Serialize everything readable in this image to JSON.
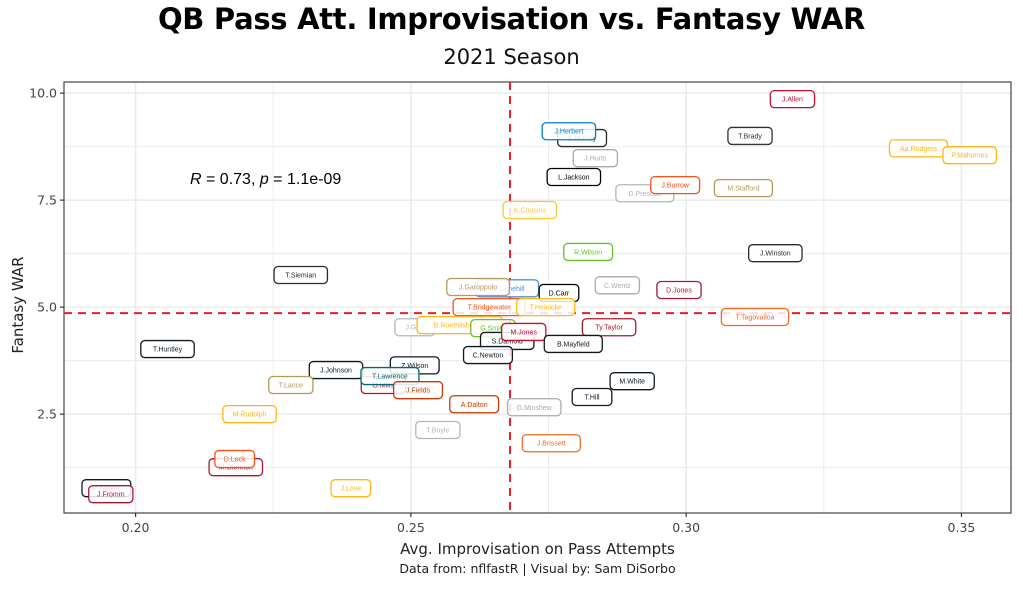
{
  "chart_data": {
    "type": "scatter",
    "title": "QB Pass Att. Improvisation vs. Fantasy WAR",
    "subtitle": "2021 Season",
    "xlabel": "Avg. Improvisation on Pass Attempts",
    "ylabel": "Fantasy WAR",
    "caption": "Data from: nflfastR | Visual by: Sam DiSorbo",
    "xlim": [
      0.187,
      0.359
    ],
    "ylim": [
      0.19,
      10.26
    ],
    "xticks": [
      0.2,
      0.25,
      0.3,
      0.35
    ],
    "xtick_labels": [
      "0.20",
      "0.25",
      "0.30",
      "0.35"
    ],
    "yticks": [
      2.5,
      5.0,
      7.5,
      10.0
    ],
    "ytick_labels": [
      "2.5",
      "5.0",
      "7.5",
      "10.0"
    ],
    "grid": true,
    "annotation": {
      "r_label": "R",
      "r_value": "0.73",
      "p_label": "p",
      "p_value": "1.1e-09"
    },
    "reference_lines": {
      "x_mean": 0.268,
      "y_mean": 4.86,
      "color": "#ee1c25"
    },
    "points": [
      {
        "label": "J.Allen",
        "x": 0.3193,
        "y": 9.86,
        "color": "#c60c30"
      },
      {
        "label": "T.Brady",
        "x": 0.3116,
        "y": 9.0,
        "color": "#34302b"
      },
      {
        "label": "Aa.Rodgers",
        "x": 0.3422,
        "y": 8.71,
        "color": "#ffb612"
      },
      {
        "label": "P.Mahomes",
        "x": 0.3515,
        "y": 8.55,
        "color": "#ffb612"
      },
      {
        "label": "K.Murray",
        "x": 0.2811,
        "y": 8.95,
        "color": "#2a2a2a"
      },
      {
        "label": "J.Herbert",
        "x": 0.2787,
        "y": 9.11,
        "color": "#0080c6"
      },
      {
        "label": "J.Hurts",
        "x": 0.2835,
        "y": 8.48,
        "color": "#a5acaf"
      },
      {
        "label": "L.Jackson",
        "x": 0.2796,
        "y": 8.04,
        "color": "#000000"
      },
      {
        "label": "D.Prescott",
        "x": 0.2925,
        "y": 7.66,
        "color": "#b0b7bc"
      },
      {
        "label": "J.Burrow",
        "x": 0.298,
        "y": 7.85,
        "color": "#fb4f14"
      },
      {
        "label": "M.Stafford",
        "x": 0.3104,
        "y": 7.78,
        "color": "#b3995d"
      },
      {
        "label": "K.Cousins",
        "x": 0.2716,
        "y": 7.27,
        "color": "#ffc62f"
      },
      {
        "label": "R.Wilson",
        "x": 0.2822,
        "y": 6.29,
        "color": "#69be28"
      },
      {
        "label": "J.Winston",
        "x": 0.3162,
        "y": 6.26,
        "color": "#2a2a2a"
      },
      {
        "label": "T.Siemian",
        "x": 0.23,
        "y": 5.75,
        "color": "#2a2a2a"
      },
      {
        "label": "R.Tannehill",
        "x": 0.2675,
        "y": 5.44,
        "color": "#4b92db"
      },
      {
        "label": "J.Garoppolo",
        "x": 0.2622,
        "y": 5.47,
        "color": "#b3995d"
      },
      {
        "label": "D.Carr",
        "x": 0.2769,
        "y": 5.33,
        "color": "#000000"
      },
      {
        "label": "C.Wentz",
        "x": 0.2875,
        "y": 5.51,
        "color": "#a5acaf"
      },
      {
        "label": "D.Jones",
        "x": 0.2987,
        "y": 5.4,
        "color": "#a71930"
      },
      {
        "label": "T.Bridgewater",
        "x": 0.2642,
        "y": 5.0,
        "color": "#fb4f14"
      },
      {
        "label": "T.Heinicke",
        "x": 0.2745,
        "y": 5.0,
        "color": "#ffb612"
      },
      {
        "label": "T.Tagovailoa",
        "x": 0.3125,
        "y": 4.77,
        "color": "#f26a24"
      },
      {
        "label": "J.Goff",
        "x": 0.2507,
        "y": 4.53,
        "color": "#b0b7bc"
      },
      {
        "label": "B.Roethlisberger",
        "x": 0.2589,
        "y": 4.58,
        "color": "#ffb612"
      },
      {
        "label": "G.Smith",
        "x": 0.2649,
        "y": 4.51,
        "color": "#69be28"
      },
      {
        "label": "S.Darnold",
        "x": 0.2675,
        "y": 4.21,
        "color": "#101820"
      },
      {
        "label": "M.Jones",
        "x": 0.2705,
        "y": 4.42,
        "color": "#c60c30"
      },
      {
        "label": "Ty.Taylor",
        "x": 0.286,
        "y": 4.53,
        "color": "#a71930"
      },
      {
        "label": "B.Mayfield",
        "x": 0.2795,
        "y": 4.14,
        "color": "#101820"
      },
      {
        "label": "C.Newton",
        "x": 0.264,
        "y": 3.88,
        "color": "#101820"
      },
      {
        "label": "T.Huntley",
        "x": 0.2058,
        "y": 4.02,
        "color": "#101820"
      },
      {
        "label": "Z.Wilson",
        "x": 0.2507,
        "y": 3.64,
        "color": "#101820"
      },
      {
        "label": "J.Johnson",
        "x": 0.2364,
        "y": 3.53,
        "color": "#101820"
      },
      {
        "label": "D.Mills",
        "x": 0.245,
        "y": 3.18,
        "color": "#a71930"
      },
      {
        "label": "T.Lawrence",
        "x": 0.2462,
        "y": 3.39,
        "color": "#006778"
      },
      {
        "label": "J.Fields",
        "x": 0.2513,
        "y": 3.06,
        "color": "#c83803"
      },
      {
        "label": "T.Lance",
        "x": 0.2282,
        "y": 3.18,
        "color": "#b3995d"
      },
      {
        "label": "M.White",
        "x": 0.2902,
        "y": 3.27,
        "color": "#101820"
      },
      {
        "label": "T.Hill",
        "x": 0.2829,
        "y": 2.9,
        "color": "#101820"
      },
      {
        "label": "A.Dalton",
        "x": 0.2615,
        "y": 2.73,
        "color": "#c83803"
      },
      {
        "label": "G.Minshew",
        "x": 0.2724,
        "y": 2.66,
        "color": "#a5acaf"
      },
      {
        "label": "M.Rudolph",
        "x": 0.2207,
        "y": 2.5,
        "color": "#ffb612"
      },
      {
        "label": "T.Boyle",
        "x": 0.2549,
        "y": 2.13,
        "color": "#b0b7bc"
      },
      {
        "label": "J.Brissett",
        "x": 0.2755,
        "y": 1.82,
        "color": "#f26a24"
      },
      {
        "label": "M.Glennon",
        "x": 0.2182,
        "y": 1.26,
        "color": "#a71930"
      },
      {
        "label": "D.Lock",
        "x": 0.218,
        "y": 1.45,
        "color": "#fb4f14"
      },
      {
        "label": "J.Love",
        "x": 0.2391,
        "y": 0.77,
        "color": "#ffb612"
      },
      {
        "label": "P.Walker",
        "x": 0.1947,
        "y": 0.77,
        "color": "#101820"
      },
      {
        "label": "J.Fromm",
        "x": 0.1955,
        "y": 0.63,
        "color": "#a71930"
      }
    ]
  }
}
